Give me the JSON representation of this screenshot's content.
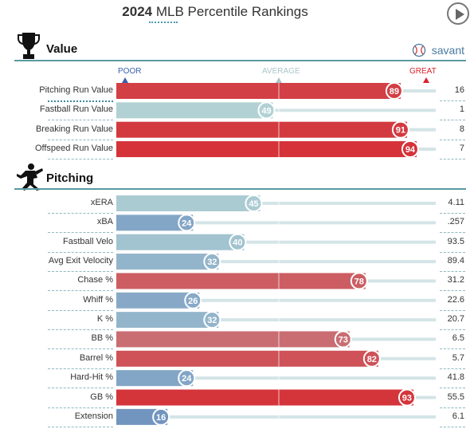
{
  "header": {
    "title_year": "2024",
    "title_rest": "MLB Percentile Rankings"
  },
  "brand": {
    "label": "savant"
  },
  "markers": {
    "poor": "POOR",
    "average": "AVERAGE",
    "great": "GREAT"
  },
  "sections": [
    {
      "title": "Value",
      "icon": "trophy-icon"
    },
    {
      "title": "Pitching",
      "icon": "pitcher-icon"
    }
  ],
  "colors": {
    "high": "#d8232a",
    "low": "#3a62ad",
    "mid": "#b4d3d6",
    "track": "#d4e4e7"
  },
  "chart_data": {
    "type": "bar",
    "xlim": [
      0,
      100
    ],
    "groups": [
      {
        "section": "Value",
        "rows": [
          {
            "label": "Pitching Run Value",
            "percentile": 89,
            "value": "16"
          },
          {
            "label": "Fastball Run Value",
            "percentile": 49,
            "value": "1"
          },
          {
            "label": "Breaking Run Value",
            "percentile": 91,
            "value": "8"
          },
          {
            "label": "Offspeed Run Value",
            "percentile": 94,
            "value": "7"
          }
        ]
      },
      {
        "section": "Pitching",
        "rows": [
          {
            "label": "xERA",
            "percentile": 45,
            "value": "4.11"
          },
          {
            "label": "xBA",
            "percentile": 24,
            "value": ".257"
          },
          {
            "label": "Fastball Velo",
            "percentile": 40,
            "value": "93.5"
          },
          {
            "label": "Avg Exit Velocity",
            "percentile": 32,
            "value": "89.4"
          },
          {
            "label": "Chase %",
            "percentile": 78,
            "value": "31.2"
          },
          {
            "label": "Whiff %",
            "percentile": 26,
            "value": "22.6"
          },
          {
            "label": "K %",
            "percentile": 32,
            "value": "20.7"
          },
          {
            "label": "BB %",
            "percentile": 73,
            "value": "6.5"
          },
          {
            "label": "Barrel %",
            "percentile": 82,
            "value": "5.7"
          },
          {
            "label": "Hard-Hit %",
            "percentile": 24,
            "value": "41.8"
          },
          {
            "label": "GB %",
            "percentile": 93,
            "value": "55.5"
          },
          {
            "label": "Extension",
            "percentile": 16,
            "value": "6.1"
          }
        ]
      }
    ]
  }
}
